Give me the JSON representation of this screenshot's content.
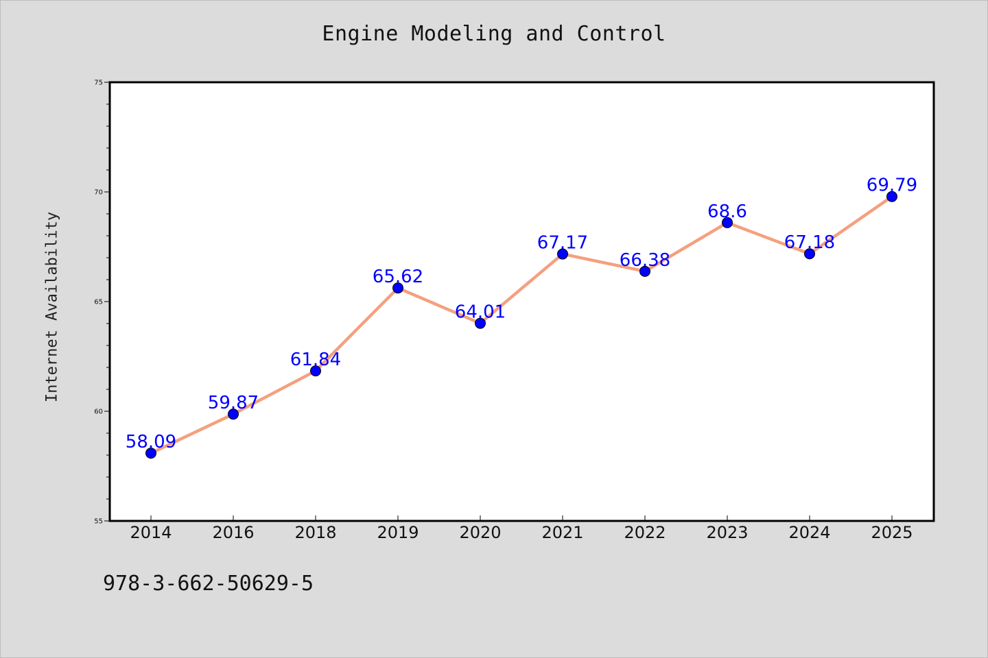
{
  "chart_data": {
    "type": "line",
    "title": "Engine Modeling and Control",
    "xlabel": "",
    "ylabel": "Internet Availability",
    "categories": [
      "2014",
      "2016",
      "2018",
      "2019",
      "2020",
      "2021",
      "2022",
      "2023",
      "2024",
      "2025"
    ],
    "series": [
      {
        "values": [
          58.09,
          59.87,
          61.84,
          65.62,
          64.01,
          67.17,
          66.38,
          68.6,
          67.18,
          69.79
        ],
        "data_labels": [
          "58.09",
          "59.87",
          "61.84",
          "65.62",
          "64.01",
          "67.17",
          "66.38",
          "68.6",
          "67.18",
          "69.79"
        ],
        "line_color": "#f4a07f",
        "marker_color": "#0000ff",
        "label_color": "#0000ff"
      }
    ],
    "ylim": [
      55,
      75
    ],
    "yticks": [
      "55",
      "60",
      "65",
      "70",
      "75"
    ],
    "grid": false,
    "legend": "none"
  },
  "footer": {
    "isbn": "978-3-662-50629-5"
  }
}
